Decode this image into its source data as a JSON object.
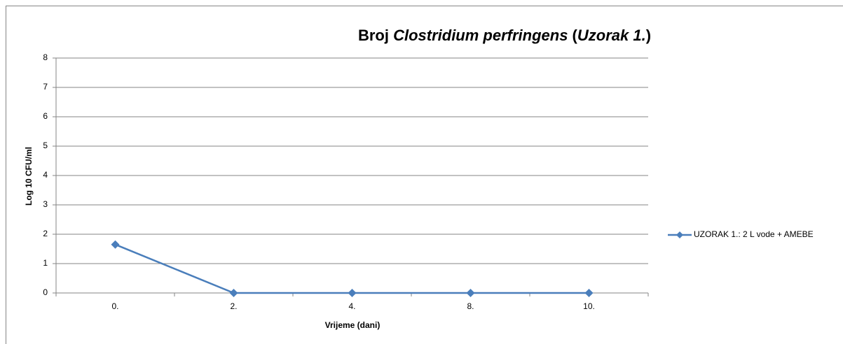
{
  "chart_data": {
    "type": "line",
    "title": [
      {
        "text": "Broj ",
        "italic": false
      },
      {
        "text": "Clostridium perfringens",
        "italic": true
      },
      {
        "text": " (",
        "italic": false
      },
      {
        "text": "Uzorak 1.",
        "italic": true
      },
      {
        "text": ")",
        "italic": false
      }
    ],
    "xlabel": "Vrijeme (dani)",
    "ylabel": "Log 10 CFU/ml",
    "categories": [
      "0.",
      "2.",
      "4.",
      "8.",
      "10."
    ],
    "series": [
      {
        "name": "UZORAK 1.: 2 L vode + AMEBE",
        "color": "#4a7ebb",
        "values": [
          1.65,
          0,
          0,
          0,
          0
        ]
      }
    ],
    "ylim": [
      0,
      8
    ],
    "yticks": [
      0,
      1,
      2,
      3,
      4,
      5,
      6,
      7,
      8
    ],
    "grid": true,
    "legend": "right"
  }
}
